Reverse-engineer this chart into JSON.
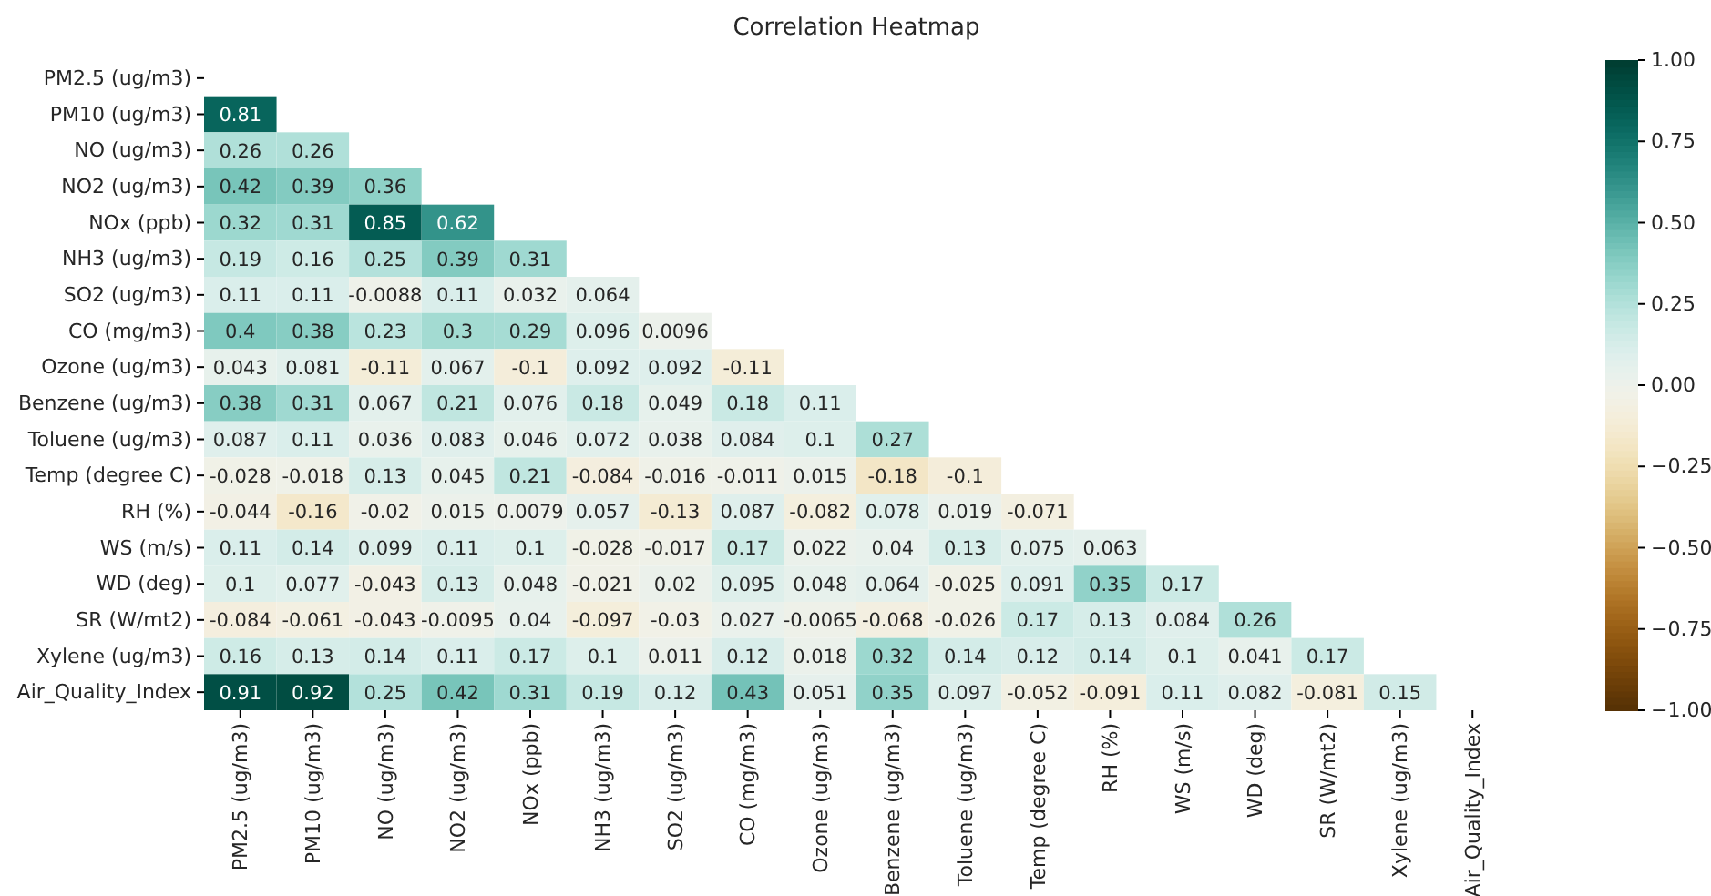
{
  "chart_data": {
    "type": "heatmap",
    "title": "Correlation Heatmap",
    "categories": [
      "PM2.5 (ug/m3)",
      "PM10 (ug/m3)",
      "NO (ug/m3)",
      "NO2 (ug/m3)",
      "NOx (ppb)",
      "NH3 (ug/m3)",
      "SO2 (ug/m3)",
      "CO (mg/m3)",
      "Ozone (ug/m3)",
      "Benzene (ug/m3)",
      "Toluene (ug/m3)",
      "Temp (degree C)",
      "RH (%)",
      "WS (m/s)",
      "WD (deg)",
      "SR (W/mt2)",
      "Xylene (ug/m3)",
      "Air_Quality_Index"
    ],
    "y_categories": [
      "PM2.5 (ug/m3)",
      "PM10 (ug/m3)",
      "NO (ug/m3)",
      "NO2 (ug/m3)",
      "NOx (ppb)",
      "NH3 (ug/m3)",
      "SO2 (ug/m3)",
      "CO (mg/m3)",
      "Ozone (ug/m3)",
      "Benzene (ug/m3)",
      "Toluene (ug/m3)",
      "Temp (degree C)",
      "RH (%)",
      "WS (m/s)",
      "WD (deg)",
      "SR (W/mt2)",
      "Xylene (ug/m3)",
      "Air_Quality_Index"
    ],
    "cells": [
      [
        null,
        null,
        null,
        null,
        null,
        null,
        null,
        null,
        null,
        null,
        null,
        null,
        null,
        null,
        null,
        null,
        null,
        null
      ],
      [
        0.81,
        null,
        null,
        null,
        null,
        null,
        null,
        null,
        null,
        null,
        null,
        null,
        null,
        null,
        null,
        null,
        null,
        null
      ],
      [
        0.26,
        0.26,
        null,
        null,
        null,
        null,
        null,
        null,
        null,
        null,
        null,
        null,
        null,
        null,
        null,
        null,
        null,
        null
      ],
      [
        0.42,
        0.39,
        0.36,
        null,
        null,
        null,
        null,
        null,
        null,
        null,
        null,
        null,
        null,
        null,
        null,
        null,
        null,
        null
      ],
      [
        0.32,
        0.31,
        0.85,
        0.62,
        null,
        null,
        null,
        null,
        null,
        null,
        null,
        null,
        null,
        null,
        null,
        null,
        null,
        null
      ],
      [
        0.19,
        0.16,
        0.25,
        0.39,
        0.31,
        null,
        null,
        null,
        null,
        null,
        null,
        null,
        null,
        null,
        null,
        null,
        null,
        null
      ],
      [
        0.11,
        0.11,
        -0.0088,
        0.11,
        0.032,
        0.064,
        null,
        null,
        null,
        null,
        null,
        null,
        null,
        null,
        null,
        null,
        null,
        null
      ],
      [
        0.4,
        0.38,
        0.23,
        0.3,
        0.29,
        0.096,
        0.0096,
        null,
        null,
        null,
        null,
        null,
        null,
        null,
        null,
        null,
        null,
        null
      ],
      [
        0.043,
        0.081,
        -0.11,
        0.067,
        -0.1,
        0.092,
        0.092,
        -0.11,
        null,
        null,
        null,
        null,
        null,
        null,
        null,
        null,
        null,
        null
      ],
      [
        0.38,
        0.31,
        0.067,
        0.21,
        0.076,
        0.18,
        0.049,
        0.18,
        0.11,
        null,
        null,
        null,
        null,
        null,
        null,
        null,
        null,
        null
      ],
      [
        0.087,
        0.11,
        0.036,
        0.083,
        0.046,
        0.072,
        0.038,
        0.084,
        0.1,
        0.27,
        null,
        null,
        null,
        null,
        null,
        null,
        null,
        null
      ],
      [
        -0.028,
        -0.018,
        0.13,
        0.045,
        0.21,
        -0.084,
        -0.016,
        -0.011,
        0.015,
        -0.18,
        -0.1,
        null,
        null,
        null,
        null,
        null,
        null,
        null
      ],
      [
        -0.044,
        -0.16,
        -0.02,
        0.015,
        0.0079,
        0.057,
        -0.13,
        0.087,
        -0.082,
        0.078,
        0.019,
        -0.071,
        null,
        null,
        null,
        null,
        null,
        null
      ],
      [
        0.11,
        0.14,
        0.099,
        0.11,
        0.1,
        -0.028,
        -0.017,
        0.17,
        0.022,
        0.04,
        0.13,
        0.075,
        0.063,
        null,
        null,
        null,
        null,
        null
      ],
      [
        0.1,
        0.077,
        -0.043,
        0.13,
        0.048,
        -0.021,
        0.02,
        0.095,
        0.048,
        0.064,
        -0.025,
        0.091,
        0.35,
        0.17,
        null,
        null,
        null,
        null
      ],
      [
        -0.084,
        -0.061,
        -0.043,
        -0.0095,
        0.04,
        -0.097,
        -0.03,
        0.027,
        -0.0065,
        -0.068,
        -0.026,
        0.17,
        0.13,
        0.084,
        0.26,
        null,
        null,
        null
      ],
      [
        0.16,
        0.13,
        0.14,
        0.11,
        0.17,
        0.1,
        0.011,
        0.12,
        0.018,
        0.32,
        0.14,
        0.12,
        0.14,
        0.1,
        0.041,
        0.17,
        null,
        null
      ],
      [
        0.91,
        0.92,
        0.25,
        0.42,
        0.31,
        0.19,
        0.12,
        0.43,
        0.051,
        0.35,
        0.097,
        -0.052,
        -0.091,
        0.11,
        0.082,
        -0.081,
        0.15,
        null
      ]
    ],
    "data_labels": true,
    "clim": [
      -1,
      1
    ],
    "cticks": [
      {
        "value": -1,
        "label": "−1.00"
      },
      {
        "value": -0.75,
        "label": "−0.75"
      },
      {
        "value": -0.5,
        "label": "−0.50"
      },
      {
        "value": -0.25,
        "label": "−0.25"
      },
      {
        "value": 0,
        "label": "0.00"
      },
      {
        "value": 0.25,
        "label": "0.25"
      },
      {
        "value": 0.5,
        "label": "0.50"
      },
      {
        "value": 0.75,
        "label": "0.75"
      },
      {
        "value": 1,
        "label": "1.00"
      }
    ]
  }
}
